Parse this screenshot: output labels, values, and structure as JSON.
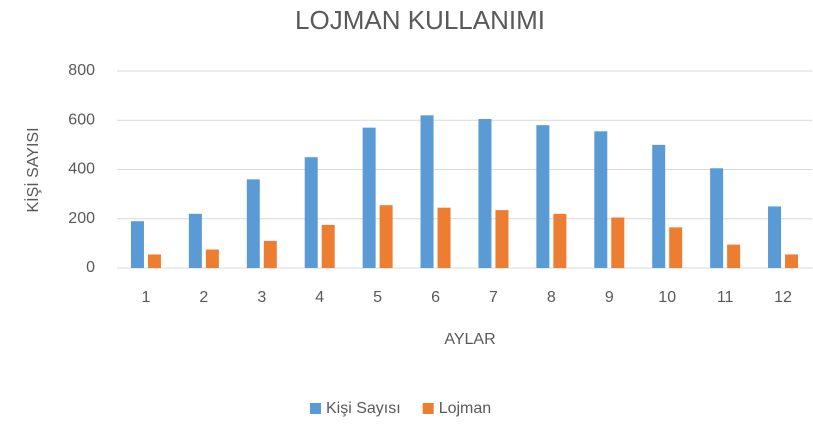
{
  "chart_data": {
    "type": "bar",
    "title": "LOJMAN KULLANIMI",
    "x_label": "AYLAR",
    "y_label": "KİŞİ SAYISI",
    "categories": [
      "1",
      "2",
      "3",
      "4",
      "5",
      "6",
      "7",
      "8",
      "9",
      "10",
      "11",
      "12"
    ],
    "series": [
      {
        "name": "Kişi Sayısı",
        "color": "#5b9bd5",
        "values": [
          190,
          220,
          360,
          450,
          570,
          620,
          605,
          580,
          555,
          500,
          405,
          250
        ]
      },
      {
        "name": "Lojman",
        "color": "#ed7d31",
        "values": [
          55,
          75,
          110,
          175,
          255,
          245,
          235,
          220,
          205,
          165,
          95,
          55
        ]
      }
    ],
    "ylim": [
      0,
      800
    ],
    "yticks": [
      0,
      200,
      400,
      600,
      800
    ],
    "grid": true,
    "legend": "bottom"
  }
}
